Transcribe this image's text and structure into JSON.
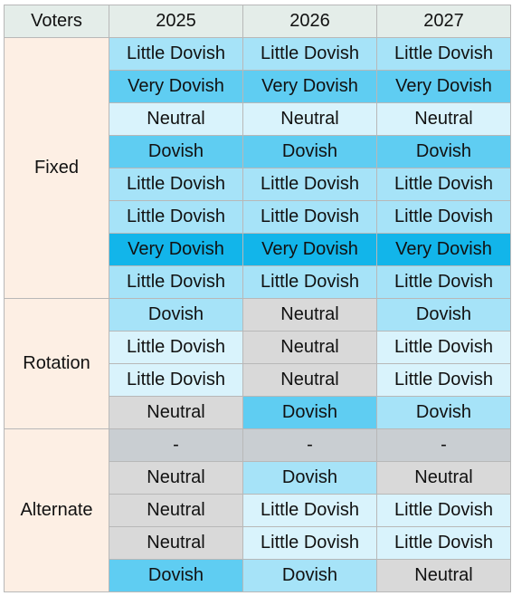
{
  "header": {
    "voters_label": "Voters",
    "years": [
      "2025",
      "2026",
      "2027"
    ]
  },
  "colors": {
    "header_bg": "#e4ede9",
    "group_bg": "#fdefe4",
    "Very Dovish": "#12b5ea",
    "Dovish": "#5fcdf2",
    "Little Dovish": "#a6e3f8",
    "Neutral": "#d9f3fc",
    "Neutral Gray": "#d9d9d9",
    "Dash": "#c9ced2"
  },
  "groups": [
    {
      "name": "Fixed",
      "rows": [
        [
          {
            "t": "Little Dovish",
            "c": "Little Dovish"
          },
          {
            "t": "Little Dovish",
            "c": "Little Dovish"
          },
          {
            "t": "Little Dovish",
            "c": "Little Dovish"
          }
        ],
        [
          {
            "t": "Very Dovish",
            "c": "Dovish"
          },
          {
            "t": "Very Dovish",
            "c": "Dovish"
          },
          {
            "t": "Very Dovish",
            "c": "Dovish"
          }
        ],
        [
          {
            "t": "Neutral",
            "c": "Neutral"
          },
          {
            "t": "Neutral",
            "c": "Neutral"
          },
          {
            "t": "Neutral",
            "c": "Neutral"
          }
        ],
        [
          {
            "t": "Dovish",
            "c": "Dovish"
          },
          {
            "t": "Dovish",
            "c": "Dovish"
          },
          {
            "t": "Dovish",
            "c": "Dovish"
          }
        ],
        [
          {
            "t": "Little Dovish",
            "c": "Little Dovish"
          },
          {
            "t": "Little Dovish",
            "c": "Little Dovish"
          },
          {
            "t": "Little Dovish",
            "c": "Little Dovish"
          }
        ],
        [
          {
            "t": "Little Dovish",
            "c": "Little Dovish"
          },
          {
            "t": "Little Dovish",
            "c": "Little Dovish"
          },
          {
            "t": "Little Dovish",
            "c": "Little Dovish"
          }
        ],
        [
          {
            "t": "Very Dovish",
            "c": "Very Dovish"
          },
          {
            "t": "Very Dovish",
            "c": "Very Dovish"
          },
          {
            "t": "Very Dovish",
            "c": "Very Dovish"
          }
        ],
        [
          {
            "t": "Little Dovish",
            "c": "Little Dovish"
          },
          {
            "t": "Little Dovish",
            "c": "Little Dovish"
          },
          {
            "t": "Little Dovish",
            "c": "Little Dovish"
          }
        ]
      ]
    },
    {
      "name": "Rotation",
      "rows": [
        [
          {
            "t": "Dovish",
            "c": "Little Dovish",
            "b": true
          },
          {
            "t": "Neutral",
            "c": "Neutral Gray",
            "b": true
          },
          {
            "t": "Dovish",
            "c": "Little Dovish",
            "b": true
          }
        ],
        [
          {
            "t": "Little Dovish",
            "c": "Neutral"
          },
          {
            "t": "Neutral",
            "c": "Neutral Gray"
          },
          {
            "t": "Little Dovish",
            "c": "Neutral"
          }
        ],
        [
          {
            "t": "Little Dovish",
            "c": "Neutral"
          },
          {
            "t": "Neutral",
            "c": "Neutral Gray"
          },
          {
            "t": "Little Dovish",
            "c": "Neutral"
          }
        ],
        [
          {
            "t": "Neutral",
            "c": "Neutral Gray"
          },
          {
            "t": "Dovish",
            "c": "Dovish"
          },
          {
            "t": "Dovish",
            "c": "Little Dovish"
          }
        ]
      ]
    },
    {
      "name": "Alternate",
      "rows": [
        [
          {
            "t": "-",
            "c": "Dash",
            "b": true
          },
          {
            "t": "-",
            "c": "Dash",
            "b": true
          },
          {
            "t": "-",
            "c": "Dash",
            "b": true
          }
        ],
        [
          {
            "t": "Neutral",
            "c": "Neutral Gray",
            "b": true
          },
          {
            "t": "Dovish",
            "c": "Little Dovish",
            "b": true
          },
          {
            "t": "Neutral",
            "c": "Neutral Gray",
            "b": true
          }
        ],
        [
          {
            "t": "Neutral",
            "c": "Neutral Gray"
          },
          {
            "t": "Little Dovish",
            "c": "Neutral"
          },
          {
            "t": "Little Dovish",
            "c": "Neutral"
          }
        ],
        [
          {
            "t": "Neutral",
            "c": "Neutral Gray"
          },
          {
            "t": "Little Dovish",
            "c": "Neutral"
          },
          {
            "t": "Little Dovish",
            "c": "Neutral"
          }
        ],
        [
          {
            "t": "Dovish",
            "c": "Dovish"
          },
          {
            "t": "Dovish",
            "c": "Little Dovish"
          },
          {
            "t": "Neutral",
            "c": "Neutral Gray"
          }
        ]
      ]
    }
  ]
}
